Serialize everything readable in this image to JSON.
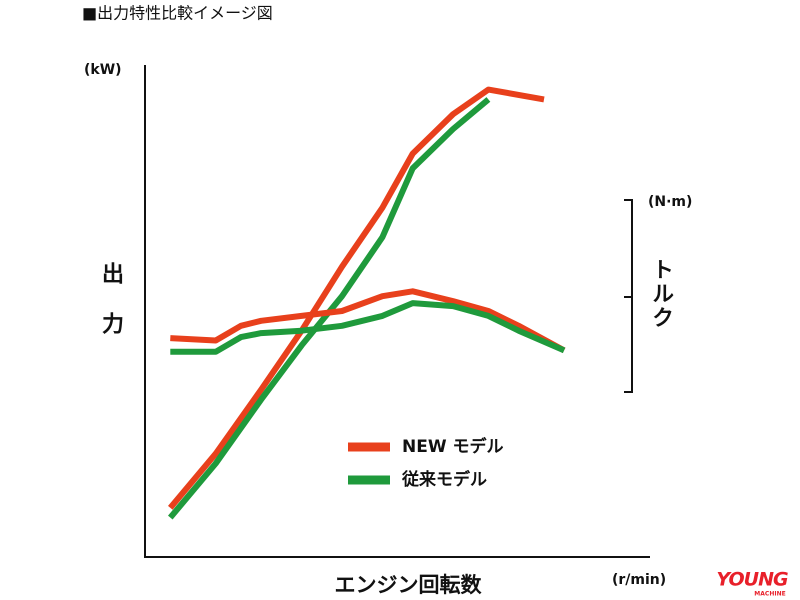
{
  "title": "■出力特性比較イメージ図",
  "x_label": "エンジン回転数",
  "x_unit": "(r/min)",
  "watermark": {
    "name": "YOUNG",
    "sub": "MACHINE"
  },
  "chart_data": [
    {
      "type": "line",
      "y_unit": "(kW)",
      "y_name": "出力",
      "xlim": [
        0,
        100
      ],
      "ylim": [
        0,
        100
      ],
      "x": [
        5,
        14,
        23,
        31,
        39,
        47,
        53,
        61,
        68,
        79
      ],
      "series": [
        {
          "name": "NEW モデル",
          "color": "#e8401c",
          "values": [
            10,
            21,
            34,
            46,
            59,
            71,
            82,
            90,
            95,
            93
          ]
        },
        {
          "name": "従来モデル",
          "color": "#1f9a3c",
          "values": [
            8,
            19,
            32,
            43,
            53,
            65,
            79,
            87,
            93,
            null
          ]
        }
      ]
    },
    {
      "type": "line",
      "axis": "y2",
      "y_unit": "(N·m)",
      "y_name": "トルク",
      "xlim": [
        0,
        100
      ],
      "y2lim": [
        0,
        100
      ],
      "x": [
        5,
        14,
        19,
        23,
        31,
        39,
        47,
        53,
        61,
        68,
        74,
        83
      ],
      "series": [
        {
          "color": "#e8401c",
          "values": [
            44.5,
            44,
            47,
            48,
            49,
            50,
            53,
            54,
            52,
            50,
            47,
            42
          ]
        },
        {
          "color": "#1f9a3c",
          "values": [
            41.7,
            41.7,
            44.7,
            45.5,
            46,
            47,
            49,
            51.6,
            51,
            49,
            46,
            42
          ]
        }
      ]
    }
  ]
}
